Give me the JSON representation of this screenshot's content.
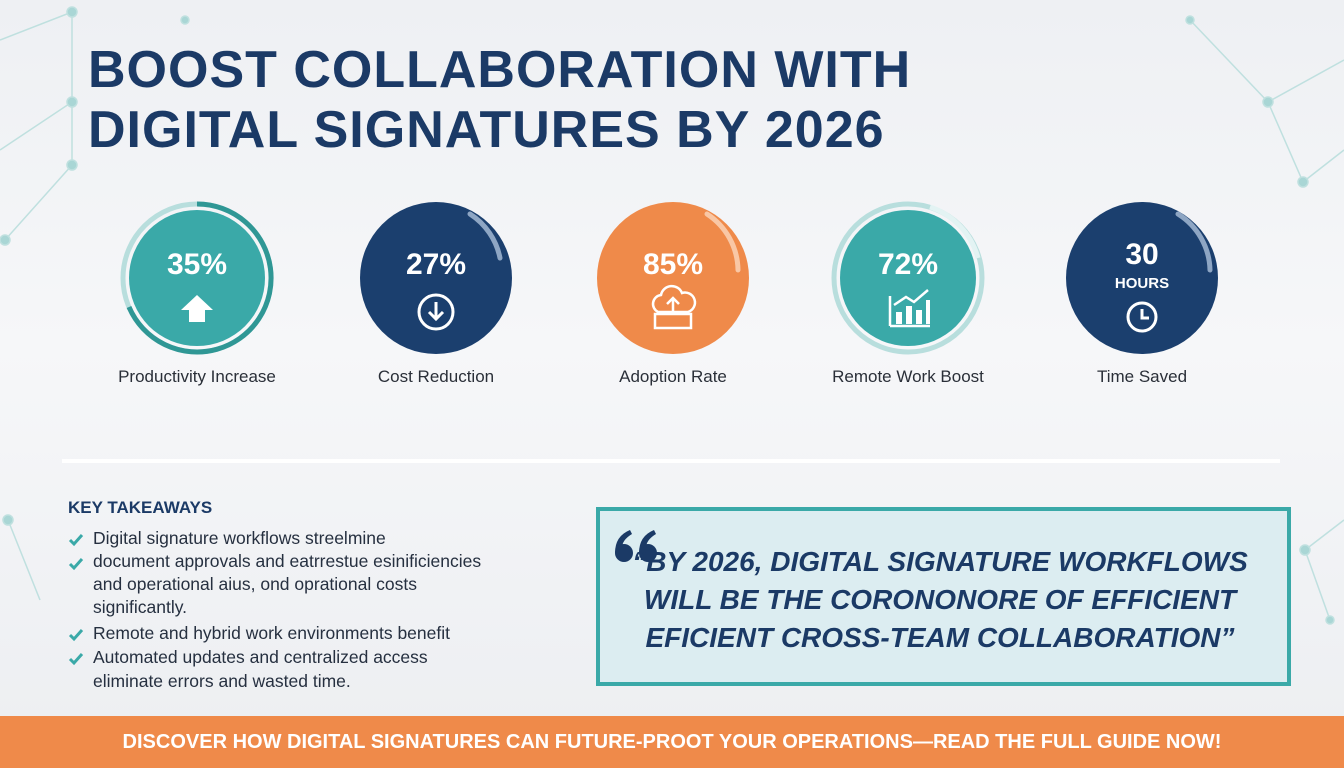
{
  "header": {
    "title_lines": [
      "BOOST COLLABORATION WITH",
      "DIGITAL SIGNATURES BY 2026"
    ]
  },
  "stats": [
    {
      "value": "35%",
      "label": "Productivity Increase"
    },
    {
      "value": "27%",
      "label": "Cost Reduction"
    },
    {
      "value": "85%",
      "label": "Adoption Rate"
    },
    {
      "value": "72%",
      "label": "Remote Work Boost"
    },
    {
      "value": "30",
      "unit": "HOURS",
      "label": "Time Saved"
    }
  ],
  "takeaways": {
    "heading": "KEY TAKEAWAYS",
    "items": [
      [
        "Digital signature workflows streelmine"
      ],
      [
        "document approvals and eatrrestue esinificiencies",
        "and operational aius, ond oprational costs",
        "significantly."
      ],
      [
        "Remote and hybrid work environments benefit"
      ],
      [
        "Automated updates and centralized access",
        "eliminate errors and wasted time."
      ]
    ]
  },
  "quote": {
    "lines": [
      "“BY 2026, DIGITAL SIGNATURE WORKFLOWS",
      "WILL BE THE CORONONORE OF EFFICIENT",
      "EFICIENT CROSS-TEAM COLLABORATION”"
    ]
  },
  "banner": {
    "text": "DISCOVER HOW DIGITAL SIGNATURES CAN FUTURE-PROOT YOUR OPERATIONS—READ THE FULL GUIDE NOW!"
  }
}
